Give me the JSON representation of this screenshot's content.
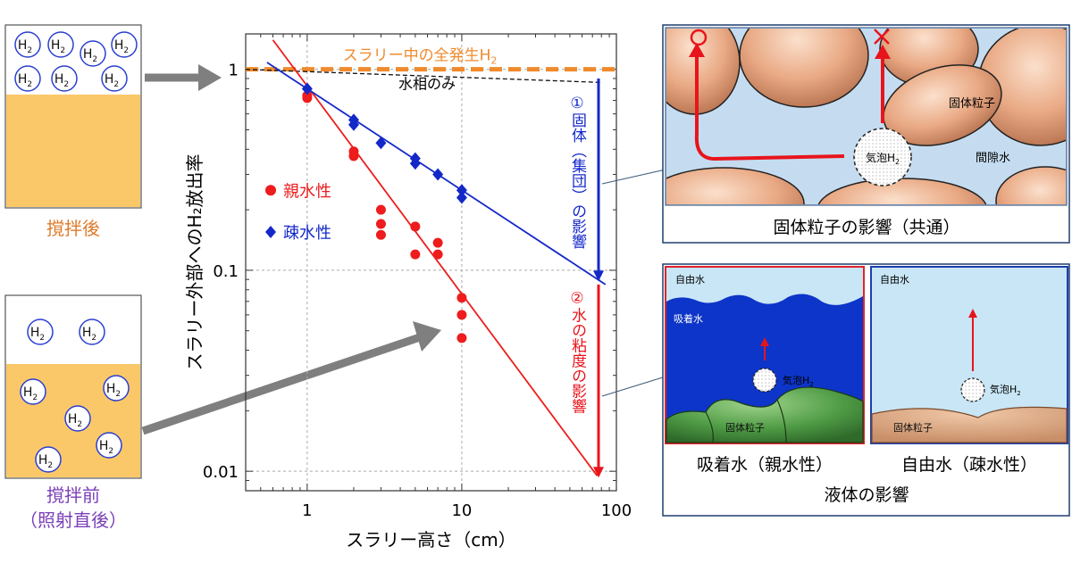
{
  "left": {
    "after_label": "撹拌後",
    "before_label_1": "撹拌前",
    "before_label_2": "（照射直後）",
    "h2_symbol": "H",
    "h2_sub": "2"
  },
  "chart_data": {
    "type": "scatter",
    "xscale": "log",
    "yscale": "log",
    "xlim": [
      0.4,
      100
    ],
    "ylim": [
      0.008,
      1.5
    ],
    "xlabel": "スラリー高さ（cm）",
    "ylabel": "スラリー外部へのH₂放出率",
    "xticks": [
      "1",
      "10",
      "100"
    ],
    "yticks": [
      "0.01",
      "0.1",
      "1"
    ],
    "grid": true,
    "legend_position": "left-middle",
    "series": [
      {
        "name": "親水性",
        "color": "#ee1c1c",
        "marker": "circle",
        "x": [
          1,
          1,
          2,
          2,
          3,
          3,
          3,
          5,
          5,
          7,
          7,
          10,
          10,
          10
        ],
        "y": [
          0.72,
          0.74,
          0.37,
          0.39,
          0.2,
          0.17,
          0.15,
          0.165,
          0.12,
          0.137,
          0.12,
          0.073,
          0.06,
          0.046
        ]
      },
      {
        "name": "疎水性",
        "color": "#1428c8",
        "marker": "diamond",
        "x": [
          1,
          2,
          2,
          3,
          5,
          5,
          7,
          10,
          10
        ],
        "y": [
          0.8,
          0.56,
          0.53,
          0.43,
          0.36,
          0.34,
          0.3,
          0.25,
          0.23
        ],
        "fit_line": {
          "x": [
            1,
            85
          ],
          "y": [
            0.8,
            0.085
          ]
        }
      }
    ],
    "fit_line_hydrophilic": {
      "x": [
        0.6,
        75
      ],
      "y": [
        1.4,
        0.0095
      ]
    },
    "total_h2_line": {
      "label": "スラリー中の全発生H",
      "label_sub": "2",
      "y": 1.0,
      "color": "#f08a2c"
    },
    "water_only_line": {
      "label": "水相のみ",
      "x": [
        1,
        80
      ],
      "y": [
        0.97,
        0.86
      ]
    },
    "annotation_blue": "①固体（集団）の影響",
    "annotation_red": "②水の粘度の影響"
  },
  "right_top": {
    "caption": "固体粒子の影響（共通）",
    "label_solid": "固体粒子",
    "label_pore_water": "間隙水",
    "label_bubble": "気泡H",
    "label_bubble_sub": "2",
    "mark_ok": "○",
    "mark_ng": "×"
  },
  "right_bottom": {
    "caption_left": "吸着水（親水性）",
    "caption_right": "自由水（疎水性）",
    "caption_main": "液体の影響",
    "free_water": "自由水",
    "adsorbed_water": "吸着水",
    "bubble": "気泡H",
    "bubble_sub": "2",
    "solid": "固体粒子"
  }
}
